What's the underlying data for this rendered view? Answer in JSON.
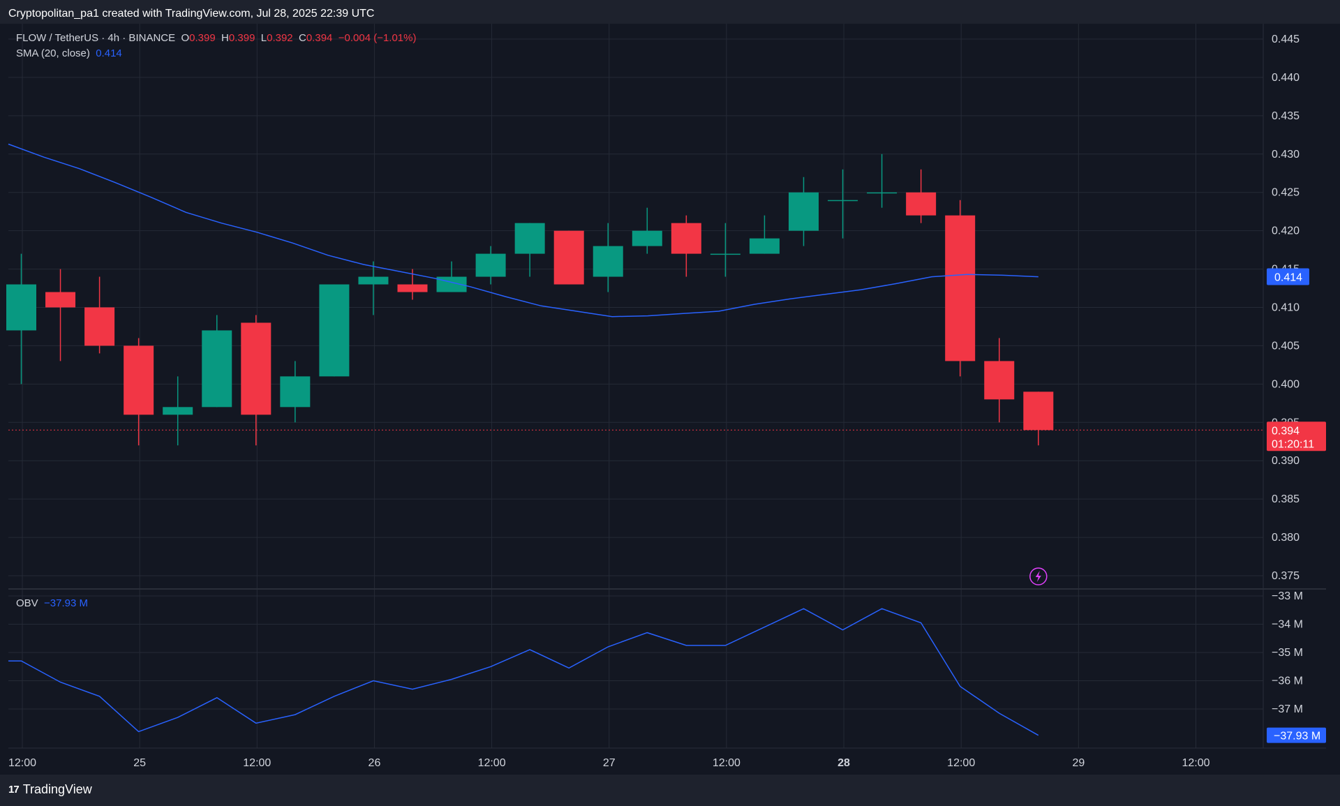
{
  "header": {
    "attribution": "Cryptopolitan_pa1 created with TradingView.com, Jul 28, 2025 22:39 UTC"
  },
  "legend": {
    "symbol": "FLOW / TetherUS · 4h · BINANCE",
    "o_label": "O",
    "o_value": "0.399",
    "h_label": "H",
    "h_value": "0.399",
    "l_label": "L",
    "l_value": "0.392",
    "c_label": "C",
    "c_value": "0.394",
    "change": "−0.004 (−1.01%)",
    "sma_label": "SMA (20, close)",
    "sma_value": "0.414",
    "obv_label": "OBV",
    "obv_value": "−37.93 M"
  },
  "footer": {
    "brand": "TradingView",
    "brand_mark": "17"
  },
  "colors": {
    "background": "#131722",
    "up": "#089981",
    "down": "#f23645",
    "sma": "#2962ff",
    "obv": "#2962ff",
    "grid": "#252a36",
    "alert": "#e040fb"
  },
  "chart_data": {
    "type": "candlestick",
    "timeframe": "4h",
    "x_ticks": [
      "12:00",
      "25",
      "12:00",
      "26",
      "12:00",
      "27",
      "12:00",
      "28",
      "12:00",
      "29",
      "12:00"
    ],
    "y_ticks": [
      "0.445",
      "0.440",
      "0.435",
      "0.430",
      "0.425",
      "0.420",
      "0.415",
      "0.410",
      "0.405",
      "0.400",
      "0.395",
      "0.390",
      "0.385",
      "0.380",
      "0.375"
    ],
    "ylim": [
      0.374,
      0.446
    ],
    "price_label": {
      "value": "0.394",
      "countdown": "01:20:11"
    },
    "sma_label_value": "0.414",
    "candles": [
      {
        "o": 0.407,
        "h": 0.417,
        "l": 0.4,
        "c": 0.413
      },
      {
        "o": 0.412,
        "h": 0.415,
        "l": 0.403,
        "c": 0.41
      },
      {
        "o": 0.41,
        "h": 0.414,
        "l": 0.404,
        "c": 0.405
      },
      {
        "o": 0.405,
        "h": 0.406,
        "l": 0.392,
        "c": 0.396
      },
      {
        "o": 0.396,
        "h": 0.401,
        "l": 0.392,
        "c": 0.397
      },
      {
        "o": 0.397,
        "h": 0.409,
        "l": 0.397,
        "c": 0.407
      },
      {
        "o": 0.408,
        "h": 0.409,
        "l": 0.392,
        "c": 0.396
      },
      {
        "o": 0.397,
        "h": 0.403,
        "l": 0.395,
        "c": 0.401
      },
      {
        "o": 0.401,
        "h": 0.413,
        "l": 0.401,
        "c": 0.413
      },
      {
        "o": 0.413,
        "h": 0.416,
        "l": 0.409,
        "c": 0.414
      },
      {
        "o": 0.413,
        "h": 0.415,
        "l": 0.411,
        "c": 0.412
      },
      {
        "o": 0.412,
        "h": 0.416,
        "l": 0.412,
        "c": 0.414
      },
      {
        "o": 0.414,
        "h": 0.418,
        "l": 0.413,
        "c": 0.417
      },
      {
        "o": 0.417,
        "h": 0.421,
        "l": 0.414,
        "c": 0.421
      },
      {
        "o": 0.42,
        "h": 0.42,
        "l": 0.413,
        "c": 0.413
      },
      {
        "o": 0.414,
        "h": 0.421,
        "l": 0.412,
        "c": 0.418
      },
      {
        "o": 0.418,
        "h": 0.423,
        "l": 0.417,
        "c": 0.42
      },
      {
        "o": 0.421,
        "h": 0.422,
        "l": 0.414,
        "c": 0.417
      },
      {
        "o": 0.417,
        "h": 0.421,
        "l": 0.414,
        "c": 0.417
      },
      {
        "o": 0.417,
        "h": 0.422,
        "l": 0.417,
        "c": 0.419
      },
      {
        "o": 0.42,
        "h": 0.427,
        "l": 0.418,
        "c": 0.425
      },
      {
        "o": 0.424,
        "h": 0.428,
        "l": 0.419,
        "c": 0.424
      },
      {
        "o": 0.425,
        "h": 0.43,
        "l": 0.423,
        "c": 0.425
      },
      {
        "o": 0.425,
        "h": 0.428,
        "l": 0.421,
        "c": 0.422
      },
      {
        "o": 0.422,
        "h": 0.424,
        "l": 0.401,
        "c": 0.403
      },
      {
        "o": 0.403,
        "h": 0.406,
        "l": 0.395,
        "c": 0.398
      },
      {
        "o": 0.399,
        "h": 0.399,
        "l": 0.392,
        "c": 0.394
      }
    ],
    "sma": [
      0.4313,
      0.4296,
      0.4281,
      0.4263,
      0.4244,
      0.4224,
      0.421,
      0.4198,
      0.4184,
      0.4168,
      0.4156,
      0.4147,
      0.4138,
      0.4127,
      0.4114,
      0.4102,
      0.4095,
      0.4088,
      0.4089,
      0.4092,
      0.4095,
      0.4104,
      0.4111,
      0.4117,
      0.4123,
      0.4131,
      0.414,
      0.4143,
      0.4142,
      0.414
    ],
    "sma_start_index": -0.35,
    "obv": {
      "y_ticks": [
        "−33 M",
        "−34 M",
        "−35 M",
        "−36 M",
        "−37 M"
      ],
      "ylim": [
        -37.93,
        -32.9
      ],
      "values": [
        -35.3,
        -36.05,
        -36.55,
        -37.8,
        -37.3,
        -36.6,
        -37.5,
        -37.2,
        -36.55,
        -36.0,
        -36.3,
        -35.95,
        -35.5,
        -34.9,
        -35.55,
        -34.8,
        -34.3,
        -34.75,
        -34.75,
        -34.1,
        -33.45,
        -34.2,
        -33.45,
        -33.95,
        -36.2,
        -37.15,
        -37.93
      ],
      "start_value": -35.3,
      "last_label": "−37.93 M"
    }
  }
}
